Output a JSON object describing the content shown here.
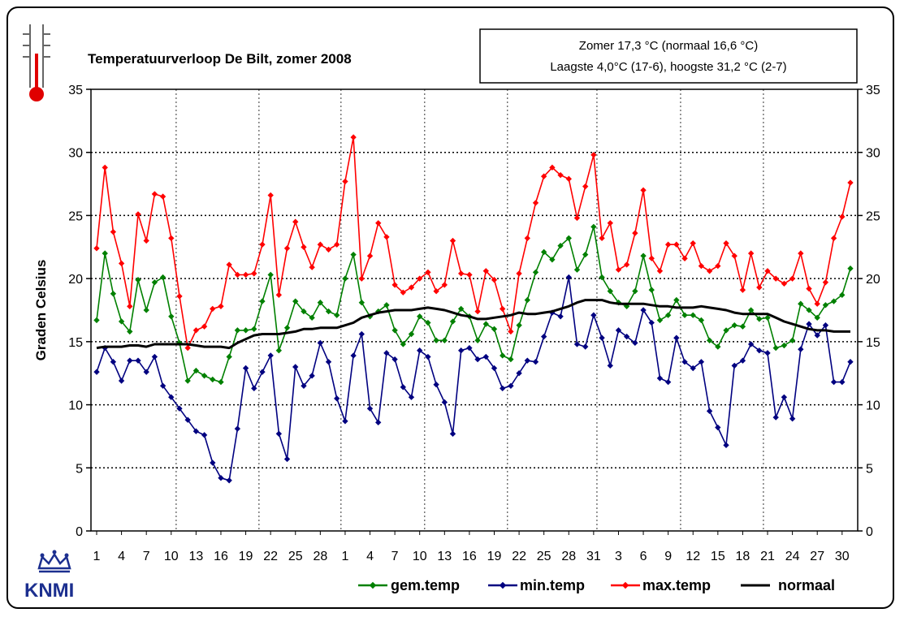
{
  "chart_data": {
    "type": "line",
    "title": "Temperatuurverloop De Bilt, zomer 2008",
    "ylabel": "Graden Celsius",
    "ylim": [
      0,
      35
    ],
    "yticks": [
      "0",
      "5",
      "10",
      "15",
      "20",
      "25",
      "30",
      "35"
    ],
    "xtick_labels": [
      "1",
      "4",
      "7",
      "10",
      "13",
      "16",
      "19",
      "22",
      "25",
      "28",
      "1",
      "4",
      "7",
      "10",
      "13",
      "16",
      "19",
      "22",
      "25",
      "28",
      "31",
      "3",
      "6",
      "9",
      "12",
      "15",
      "18",
      "21",
      "24",
      "27",
      "30"
    ],
    "info_line1": "Zomer 17,3 °C (normaal 16,6 °C)",
    "info_line2": "Laagste 4,0°C (17-6), hoogste  31,2 °C (2-7)",
    "grid": "dotted, vertical at month boundaries and every 10 days, horizontal every 5 °C",
    "legend_position": "bottom-right",
    "colors": {
      "gem": "#008000",
      "min": "#000080",
      "max": "#ff0000",
      "normaal": "#000000"
    },
    "series": [
      {
        "name": "gem.temp",
        "values": [
          16.7,
          22.0,
          18.8,
          16.6,
          15.8,
          19.9,
          17.5,
          19.7,
          20.1,
          17.0,
          14.9,
          11.9,
          12.7,
          12.3,
          12.0,
          11.8,
          13.8,
          15.9,
          15.9,
          16.0,
          18.2,
          20.3,
          14.3,
          16.1,
          18.2,
          17.4,
          16.9,
          18.1,
          17.4,
          17.1,
          20.0,
          21.9,
          18.1,
          17.0,
          17.4,
          17.9,
          15.9,
          14.8,
          15.6,
          17.0,
          16.5,
          15.1,
          15.1,
          16.6,
          17.6,
          17.0,
          15.1,
          16.4,
          16.0,
          13.9,
          13.6,
          16.3,
          18.3,
          20.5,
          22.1,
          21.5,
          22.6,
          23.2,
          20.7,
          21.9,
          24.1,
          20.1,
          19.0,
          18.1,
          17.8,
          19.0,
          21.8,
          19.1,
          16.7,
          17.1,
          18.3,
          17.1,
          17.1,
          16.7,
          15.1,
          14.6,
          15.9,
          16.3,
          16.2,
          17.5,
          16.8,
          16.9,
          14.5,
          14.7,
          15.1,
          18.0,
          17.5,
          16.9,
          17.9,
          18.2,
          18.7,
          20.8
        ]
      },
      {
        "name": "min.temp",
        "values": [
          12.6,
          14.5,
          13.4,
          11.9,
          13.5,
          13.5,
          12.6,
          13.8,
          11.5,
          10.6,
          9.7,
          8.8,
          7.9,
          7.6,
          5.4,
          4.2,
          4.0,
          8.1,
          12.9,
          11.3,
          12.6,
          13.9,
          7.7,
          5.7,
          13.0,
          11.5,
          12.3,
          14.9,
          13.4,
          10.5,
          8.7,
          13.9,
          15.6,
          9.7,
          8.6,
          14.1,
          13.6,
          11.4,
          10.6,
          14.3,
          13.8,
          11.6,
          10.2,
          7.7,
          14.3,
          14.5,
          13.6,
          13.8,
          12.9,
          11.3,
          11.5,
          12.5,
          13.5,
          13.4,
          15.4,
          17.3,
          17.0,
          20.1,
          14.8,
          14.6,
          17.1,
          15.3,
          13.1,
          15.9,
          15.4,
          14.9,
          17.5,
          16.5,
          12.1,
          11.8,
          15.3,
          13.4,
          12.9,
          13.4,
          9.5,
          8.2,
          6.8,
          13.1,
          13.5,
          14.8,
          14.3,
          14.1,
          9.0,
          10.6,
          8.9,
          14.4,
          16.4,
          15.5,
          16.3,
          11.8,
          11.8,
          13.4
        ]
      },
      {
        "name": "max.temp",
        "values": [
          22.4,
          28.8,
          23.7,
          21.2,
          17.8,
          25.1,
          23.0,
          26.7,
          26.5,
          23.2,
          18.6,
          14.5,
          15.9,
          16.2,
          17.6,
          17.8,
          21.1,
          20.3,
          20.3,
          20.4,
          22.7,
          26.6,
          18.7,
          22.4,
          24.5,
          22.5,
          20.9,
          22.7,
          22.3,
          22.7,
          27.7,
          31.2,
          20.0,
          21.8,
          24.4,
          23.3,
          19.5,
          18.9,
          19.3,
          20.0,
          20.5,
          19.0,
          19.5,
          23.0,
          20.4,
          20.3,
          17.4,
          20.6,
          19.9,
          17.6,
          15.8,
          20.4,
          23.2,
          26.0,
          28.1,
          28.8,
          28.2,
          27.9,
          24.8,
          27.3,
          29.8,
          23.2,
          24.4,
          20.7,
          21.1,
          23.6,
          27.0,
          21.6,
          20.6,
          22.7,
          22.7,
          21.6,
          22.8,
          21.0,
          20.6,
          21.0,
          22.8,
          21.8,
          19.1,
          22.0,
          19.3,
          20.6,
          20.0,
          19.6,
          20.0,
          22.0,
          19.2,
          18.0,
          19.7,
          23.2,
          24.9,
          27.6
        ]
      },
      {
        "name": "normaal",
        "values": [
          14.5,
          14.6,
          14.6,
          14.6,
          14.7,
          14.7,
          14.6,
          14.8,
          14.8,
          14.8,
          14.8,
          14.8,
          14.7,
          14.6,
          14.6,
          14.6,
          14.5,
          14.9,
          15.2,
          15.5,
          15.6,
          15.6,
          15.6,
          15.7,
          15.8,
          16.0,
          16.0,
          16.1,
          16.1,
          16.1,
          16.3,
          16.5,
          16.9,
          17.1,
          17.3,
          17.4,
          17.5,
          17.5,
          17.5,
          17.6,
          17.7,
          17.6,
          17.5,
          17.3,
          17.1,
          17.0,
          16.8,
          16.8,
          16.9,
          17.0,
          17.1,
          17.3,
          17.2,
          17.2,
          17.3,
          17.4,
          17.6,
          17.8,
          18.1,
          18.3,
          18.3,
          18.3,
          18.1,
          18.0,
          18.0,
          18.0,
          18.0,
          17.9,
          17.8,
          17.8,
          17.7,
          17.7,
          17.7,
          17.8,
          17.7,
          17.6,
          17.5,
          17.3,
          17.2,
          17.2,
          17.2,
          17.2,
          16.9,
          16.6,
          16.4,
          16.2,
          16.0,
          15.9,
          15.9,
          15.8,
          15.8,
          15.8
        ]
      }
    ]
  }
}
